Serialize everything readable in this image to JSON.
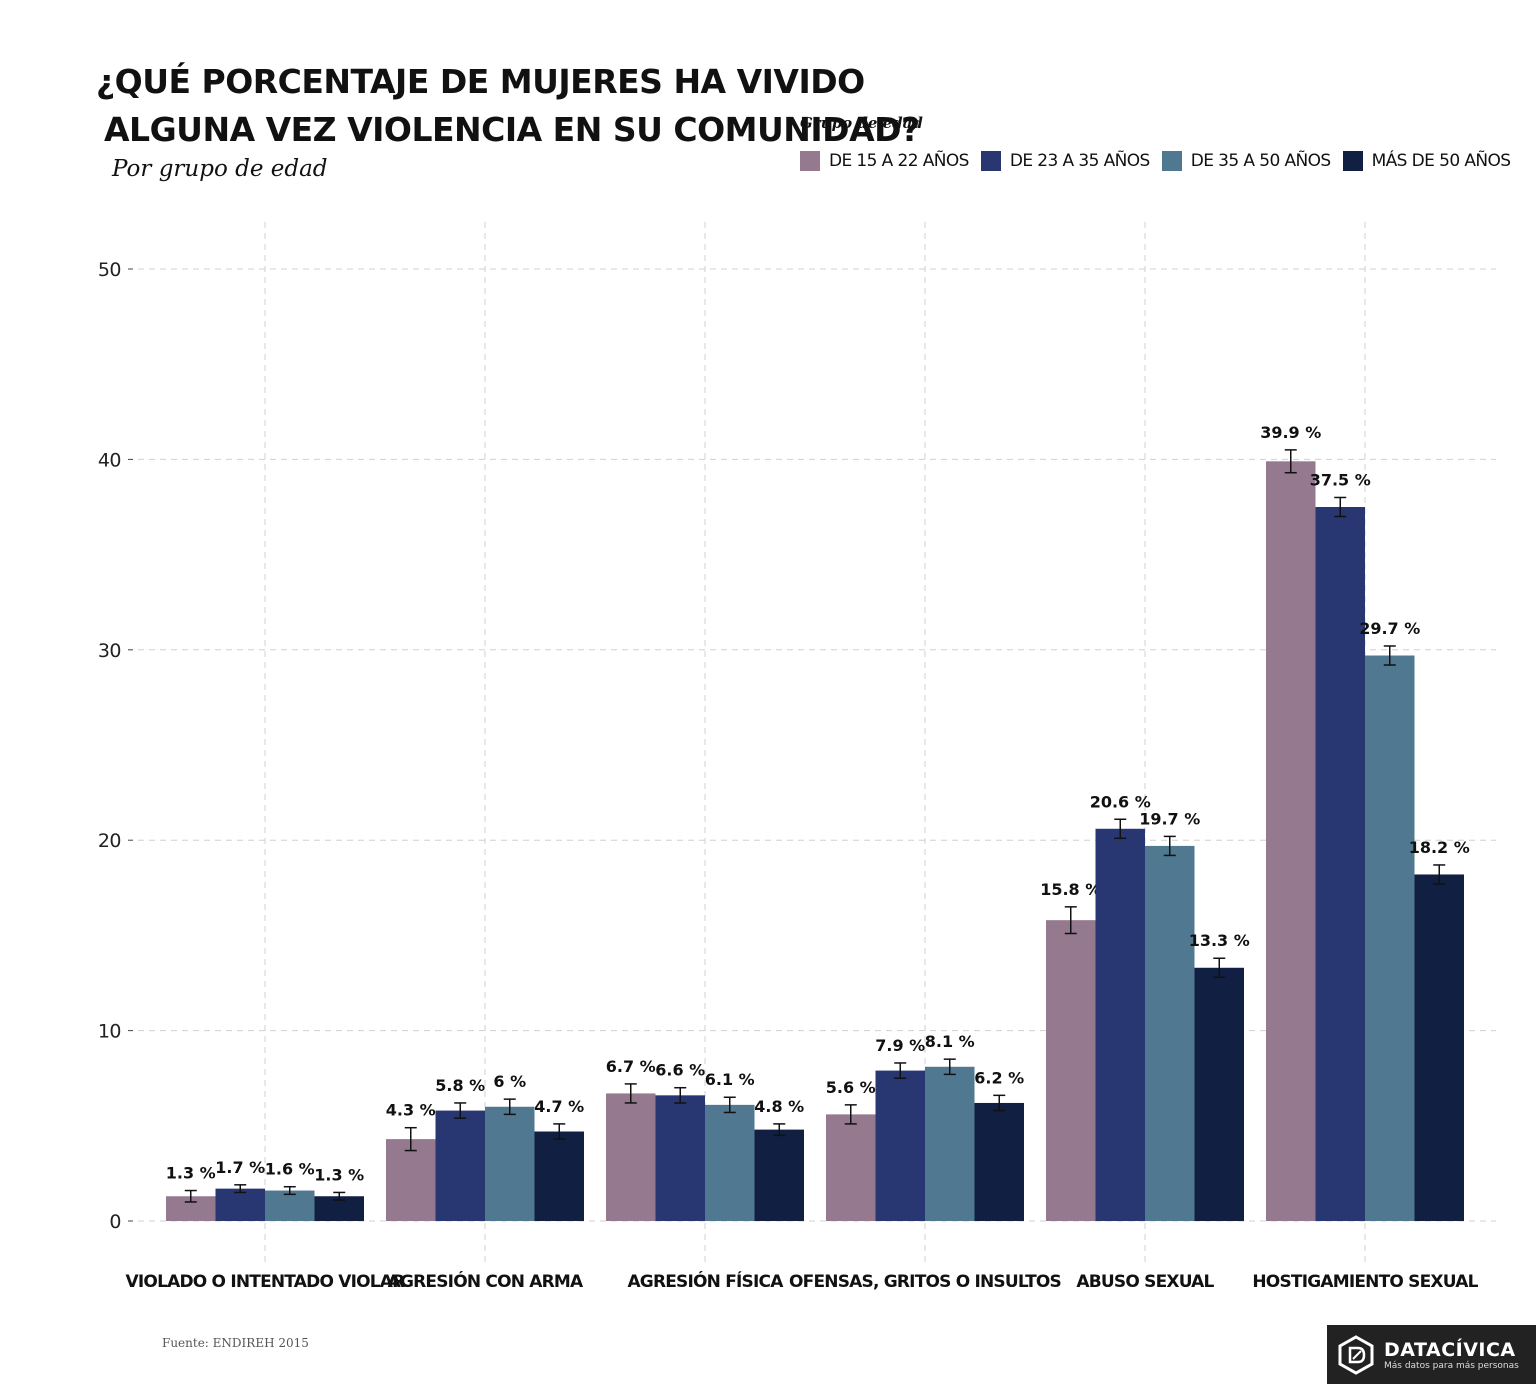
{
  "header": {
    "title_line1": "¿QUÉ PORCENTAJE DE MUJERES HA VIVIDO",
    "title_line2": "ALGUNA VEZ VIOLENCIA EN SU COMUNIDAD?",
    "subtitle": "Por grupo de edad"
  },
  "legend": {
    "title": "Grupo de edad",
    "placement": "top-right"
  },
  "colors": {
    "s1": "#94798f",
    "s2": "#283771",
    "s3": "#517891",
    "s4": "#111f42"
  },
  "chart_data": {
    "type": "bar",
    "categories": [
      "VIOLADO O INTENTADO VIOLAR",
      "AGRESIÓN CON ARMA",
      "AGRESIÓN FÍSICA",
      "OFENSAS, GRITOS O INSULTOS",
      "ABUSO SEXUAL",
      "HOSTIGAMIENTO SEXUAL"
    ],
    "series": [
      {
        "name": "DE 15 A 22 AÑOS",
        "values": [
          1.3,
          4.3,
          6.7,
          5.6,
          15.8,
          39.9
        ],
        "labels": [
          "1.3 %",
          "4.3 %",
          "6.7 %",
          "5.6 %",
          "15.8 %",
          "39.9 %"
        ],
        "error": [
          0.3,
          0.6,
          0.5,
          0.5,
          0.7,
          0.6
        ]
      },
      {
        "name": "DE 23 A 35 AÑOS",
        "values": [
          1.7,
          5.8,
          6.6,
          7.9,
          20.6,
          37.5
        ],
        "labels": [
          "1.7 %",
          "5.8 %",
          "6.6 %",
          "7.9 %",
          "20.6 %",
          "37.5 %"
        ],
        "error": [
          0.2,
          0.4,
          0.4,
          0.4,
          0.5,
          0.5
        ]
      },
      {
        "name": "DE 35 A 50 AÑOS",
        "values": [
          1.6,
          6.0,
          6.1,
          8.1,
          19.7,
          29.7
        ],
        "labels": [
          "1.6 %",
          "6 %",
          "6.1 %",
          "8.1 %",
          "19.7 %",
          "29.7 %"
        ],
        "error": [
          0.2,
          0.4,
          0.4,
          0.4,
          0.5,
          0.5
        ]
      },
      {
        "name": "MÁS DE 50 AÑOS",
        "values": [
          1.3,
          4.7,
          4.8,
          6.2,
          13.3,
          18.2
        ],
        "labels": [
          "1.3 %",
          "4.7 %",
          "4.8 %",
          "6.2 %",
          "13.3 %",
          "18.2 %"
        ],
        "error": [
          0.2,
          0.4,
          0.3,
          0.4,
          0.5,
          0.5
        ]
      }
    ],
    "yticks": [
      "0",
      "10",
      "20",
      "30",
      "40",
      "50"
    ],
    "ylim": [
      0,
      50
    ],
    "xlabel": "",
    "ylabel": "",
    "grid": true,
    "error_bars": true
  },
  "footer": {
    "source": "Fuente: ENDIREH 2015",
    "logo_name": "DATACÍVICA",
    "logo_tagline": "Más datos para más personas"
  }
}
